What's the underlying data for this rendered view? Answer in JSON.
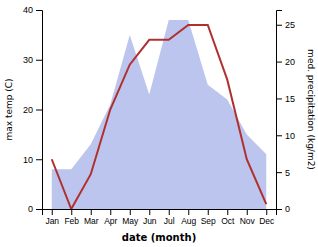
{
  "chart_data": {
    "type": "line",
    "categories": [
      "Jan",
      "Feb",
      "Mar",
      "Apr",
      "May",
      "Jun",
      "Jul",
      "Aug",
      "Sep",
      "Oct",
      "Nov",
      "Dec"
    ],
    "series": [
      {
        "type": "area",
        "color": "#bcc5ee",
        "values": [
          8,
          8,
          13,
          21,
          35,
          23,
          38,
          38,
          25,
          22,
          15,
          11
        ]
      },
      {
        "type": "line",
        "color": "#b03030",
        "values": [
          10,
          0,
          7,
          20,
          29,
          34,
          34,
          37,
          37,
          26,
          10,
          1
        ]
      }
    ],
    "xlabel": "date (month)",
    "ylabel": "max temp (C)",
    "y2label": "med. precipitation (kg/m2)",
    "ylim": [
      0,
      40
    ],
    "yticks": [
      0,
      10,
      20,
      30,
      40
    ],
    "y2lim": [
      0,
      27
    ],
    "y2ticks": [
      0,
      5,
      10,
      15,
      20,
      25
    ]
  }
}
